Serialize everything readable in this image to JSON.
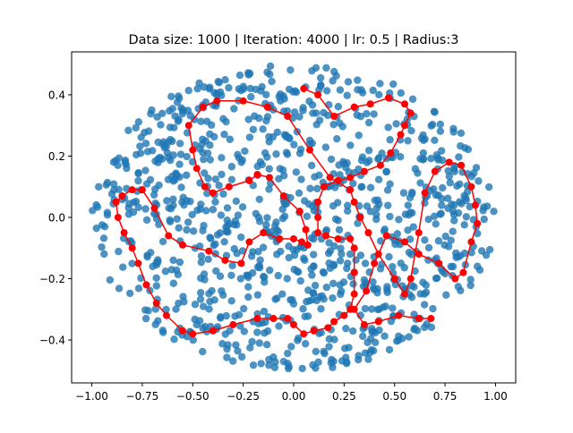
{
  "chart_data": {
    "type": "scatter",
    "title": "Data size: 1000 | Iteration: 4000 | lr: 0.5 | Radius:3",
    "xlabel": "",
    "ylabel": "",
    "xlim": [
      -1.1,
      1.1
    ],
    "ylim": [
      -0.54,
      0.54
    ],
    "xticks": [
      -1.0,
      -0.75,
      -0.5,
      -0.25,
      0.0,
      0.25,
      0.5,
      0.75,
      1.0
    ],
    "xtick_labels": [
      "−1.00",
      "−0.75",
      "−0.50",
      "−0.25",
      "0.00",
      "0.25",
      "0.50",
      "0.75",
      "1.00"
    ],
    "yticks": [
      -0.4,
      -0.2,
      0.0,
      0.2,
      0.4
    ],
    "ytick_labels": [
      "−0.4",
      "−0.2",
      "0.0",
      "0.2",
      "0.4"
    ],
    "grid": false,
    "legend": "none",
    "series": [
      {
        "kind": "scatter",
        "color": "#1f77b4",
        "count": 1000,
        "distribution": "uniform within ellipse",
        "x_semi_axis": 1.0,
        "y_semi_axis": 0.5,
        "center": [
          0,
          0
        ]
      },
      {
        "kind": "line-with-markers",
        "color": "#ff0000",
        "points": [
          [
            0.05,
            0.42
          ],
          [
            0.12,
            0.4
          ],
          [
            0.2,
            0.33
          ],
          [
            0.3,
            0.36
          ],
          [
            0.38,
            0.37
          ],
          [
            0.47,
            0.39
          ],
          [
            0.55,
            0.37
          ],
          [
            0.58,
            0.34
          ],
          [
            0.55,
            0.3
          ],
          [
            0.53,
            0.27
          ],
          [
            0.48,
            0.21
          ],
          [
            0.43,
            0.17
          ],
          [
            0.35,
            0.15
          ],
          [
            0.28,
            0.13
          ],
          [
            0.22,
            0.12
          ],
          [
            0.15,
            0.1
          ],
          [
            0.12,
            0.05
          ],
          [
            0.12,
            0.0
          ],
          [
            0.12,
            -0.05
          ],
          [
            0.16,
            -0.06
          ],
          [
            0.22,
            -0.07
          ],
          [
            0.28,
            -0.07
          ],
          [
            0.3,
            -0.1
          ],
          [
            0.3,
            -0.18
          ],
          [
            0.3,
            -0.25
          ],
          [
            0.28,
            -0.3
          ],
          [
            0.25,
            -0.32
          ],
          [
            0.2,
            -0.34
          ],
          [
            0.17,
            -0.36
          ],
          [
            0.1,
            -0.37
          ],
          [
            0.05,
            -0.38
          ],
          [
            0.0,
            -0.35
          ],
          [
            -0.03,
            -0.33
          ],
          [
            -0.1,
            -0.33
          ],
          [
            -0.18,
            -0.33
          ],
          [
            -0.3,
            -0.35
          ],
          [
            -0.4,
            -0.37
          ],
          [
            -0.5,
            -0.38
          ],
          [
            -0.55,
            -0.37
          ],
          [
            -0.63,
            -0.32
          ],
          [
            -0.68,
            -0.28
          ],
          [
            -0.73,
            -0.22
          ],
          [
            -0.77,
            -0.15
          ],
          [
            -0.8,
            -0.1
          ],
          [
            -0.84,
            -0.05
          ],
          [
            -0.87,
            0.0
          ],
          [
            -0.88,
            0.05
          ],
          [
            -0.85,
            0.07
          ],
          [
            -0.8,
            0.09
          ],
          [
            -0.75,
            0.09
          ],
          [
            -0.69,
            0.03
          ],
          [
            -0.62,
            -0.06
          ],
          [
            -0.55,
            -0.09
          ],
          [
            -0.42,
            -0.11
          ],
          [
            -0.34,
            -0.14
          ],
          [
            -0.26,
            -0.15
          ],
          [
            -0.22,
            -0.08
          ],
          [
            -0.15,
            -0.05
          ],
          [
            -0.07,
            -0.07
          ],
          [
            0.0,
            -0.07
          ],
          [
            0.04,
            -0.08
          ],
          [
            0.07,
            -0.09
          ],
          [
            0.06,
            -0.04
          ],
          [
            0.03,
            0.02
          ],
          [
            -0.05,
            0.07
          ],
          [
            -0.12,
            0.13
          ],
          [
            -0.18,
            0.14
          ],
          [
            -0.22,
            0.12
          ],
          [
            -0.32,
            0.1
          ],
          [
            -0.4,
            0.08
          ],
          [
            -0.44,
            0.1
          ],
          [
            -0.48,
            0.16
          ],
          [
            -0.5,
            0.22
          ],
          [
            -0.52,
            0.3
          ],
          [
            -0.45,
            0.36
          ],
          [
            -0.38,
            0.38
          ],
          [
            -0.25,
            0.38
          ],
          [
            -0.13,
            0.36
          ],
          [
            -0.03,
            0.33
          ],
          [
            0.08,
            0.22
          ],
          [
            0.18,
            0.13
          ],
          [
            0.28,
            0.09
          ],
          [
            0.3,
            0.05
          ],
          [
            0.33,
            0.0
          ],
          [
            0.37,
            -0.05
          ],
          [
            0.42,
            -0.12
          ],
          [
            0.5,
            -0.2
          ],
          [
            0.55,
            -0.25
          ],
          [
            0.58,
            -0.2
          ],
          [
            0.62,
            -0.05
          ],
          [
            0.65,
            0.08
          ],
          [
            0.7,
            0.15
          ],
          [
            0.77,
            0.18
          ],
          [
            0.83,
            0.17
          ],
          [
            0.88,
            0.1
          ],
          [
            0.9,
            0.04
          ],
          [
            0.91,
            -0.02
          ],
          [
            0.88,
            -0.08
          ],
          [
            0.84,
            -0.18
          ],
          [
            0.8,
            -0.2
          ],
          [
            0.72,
            -0.15
          ],
          [
            0.62,
            -0.12
          ],
          [
            0.55,
            -0.08
          ],
          [
            0.46,
            -0.06
          ],
          [
            0.4,
            -0.15
          ],
          [
            0.36,
            -0.24
          ],
          [
            0.3,
            -0.3
          ],
          [
            0.35,
            -0.35
          ],
          [
            0.42,
            -0.34
          ],
          [
            0.52,
            -0.32
          ],
          [
            0.62,
            -0.33
          ],
          [
            0.68,
            -0.33
          ]
        ]
      }
    ]
  }
}
